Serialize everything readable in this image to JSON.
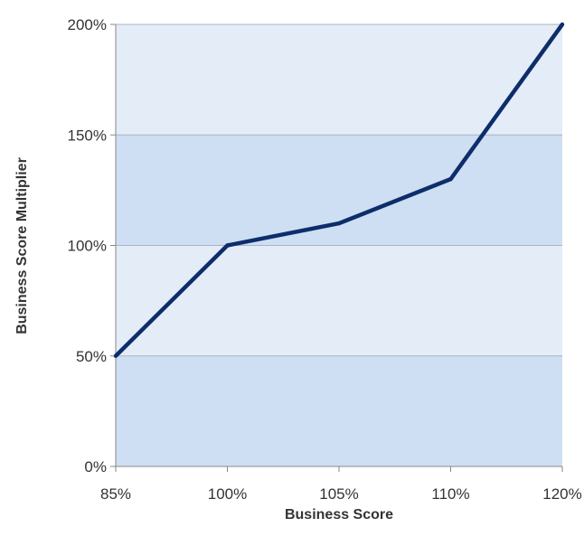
{
  "chart_data": {
    "type": "line",
    "title": "",
    "xlabel": "Business Score",
    "ylabel": "Business Score Multiplier",
    "categories": [
      "85%",
      "100%",
      "105%",
      "110%",
      "120%"
    ],
    "x": [
      85,
      100,
      105,
      110,
      120
    ],
    "series": [
      {
        "values": [
          50,
          100,
          110,
          130,
          200
        ]
      }
    ],
    "ylim": [
      0,
      200
    ],
    "y_ticks": [
      0,
      50,
      100,
      150,
      200
    ],
    "y_tick_labels": [
      "0%",
      "50%",
      "100%",
      "150%",
      "200%"
    ],
    "grid": true,
    "legend": "none",
    "colors": {
      "line": "#0d2d6b",
      "band_light": "#e4ecf8",
      "band_dark": "#cedff3",
      "grid": "#a9b3c2",
      "axis": "#888888"
    }
  }
}
